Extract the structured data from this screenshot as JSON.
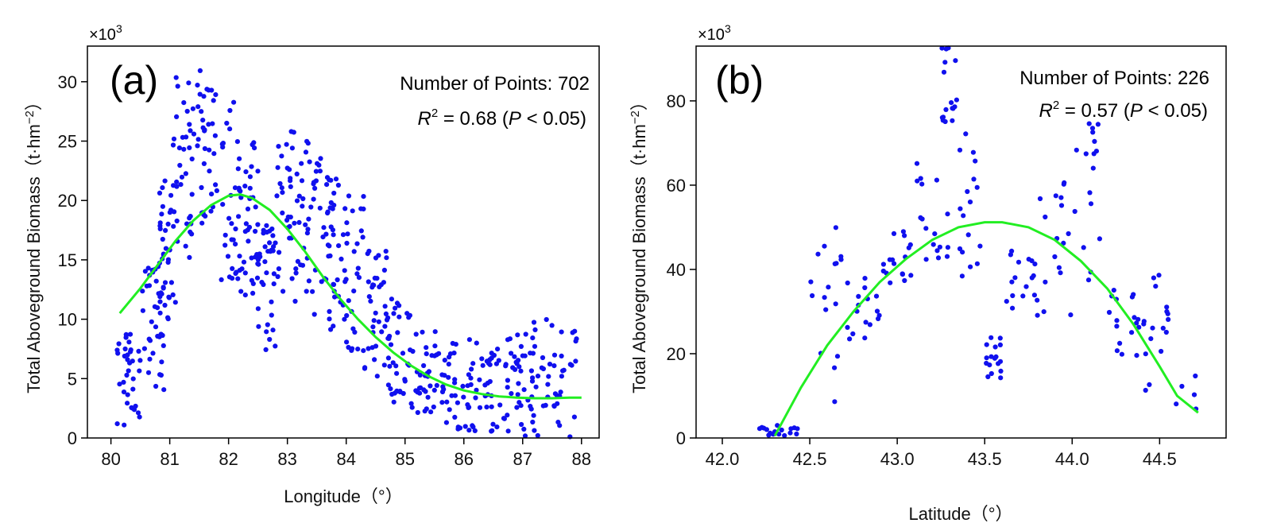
{
  "chart_data": [
    {
      "type": "scatter",
      "panel_label": "(a)",
      "multiplier": "×10",
      "multiplier_exp": "3",
      "xlabel": "Longitude（°）",
      "ylabel": "Total Aboveground Biomass（t·hm",
      "ylabel_exp": "−2",
      "ylabel_close": "）",
      "xlim": [
        79.6,
        88.3
      ],
      "ylim": [
        0,
        33
      ],
      "xticks": [
        80,
        81,
        82,
        83,
        84,
        85,
        86,
        87,
        88
      ],
      "yticks": [
        0,
        5,
        10,
        15,
        20,
        25,
        30
      ],
      "annotation": {
        "points_text": "Number of Points: 702",
        "r_label": "R",
        "r_exp": "2",
        "r_rest": " = 0.68 (",
        "p_label": "P",
        "p_rest": " < 0.05)"
      },
      "point_color": "#1010ee",
      "fit_color": "#22ee22",
      "n_points": 702,
      "fit_curve": {
        "x": [
          80.15,
          80.5,
          80.8,
          81.1,
          81.4,
          81.7,
          82.0,
          82.2,
          82.4,
          82.7,
          83.0,
          83.3,
          83.6,
          83.9,
          84.2,
          84.5,
          84.8,
          85.1,
          85.4,
          85.7,
          86.0,
          86.3,
          86.6,
          86.9,
          87.2,
          87.5,
          87.8,
          88.0
        ],
        "y": [
          10.5,
          12.6,
          14.6,
          16.6,
          18.3,
          19.6,
          20.4,
          20.5,
          20.2,
          19.2,
          17.6,
          15.7,
          13.6,
          11.7,
          10.0,
          8.5,
          7.2,
          6.1,
          5.2,
          4.5,
          4.0,
          3.7,
          3.5,
          3.4,
          3.35,
          3.35,
          3.4,
          3.4
        ]
      },
      "cloud": [
        [
          80.1,
          80.5,
          1.0,
          9.0
        ],
        [
          80.5,
          80.9,
          4.0,
          15.0
        ],
        [
          80.8,
          81.1,
          10.0,
          22.0
        ],
        [
          81.0,
          81.4,
          15.0,
          32.0
        ],
        [
          81.4,
          81.8,
          18.0,
          31.0
        ],
        [
          81.8,
          82.2,
          13.0,
          29.0
        ],
        [
          82.2,
          82.5,
          11.0,
          25.0
        ],
        [
          82.5,
          82.8,
          7.0,
          18.0
        ],
        [
          82.8,
          83.2,
          11.0,
          26.5
        ],
        [
          83.2,
          83.6,
          10.0,
          25.0
        ],
        [
          83.6,
          83.9,
          9.0,
          22.0
        ],
        [
          83.9,
          84.3,
          7.0,
          20.5
        ],
        [
          84.3,
          84.7,
          5.0,
          16.0
        ],
        [
          84.7,
          85.1,
          3.0,
          12.0
        ],
        [
          85.1,
          85.6,
          2.0,
          9.0
        ],
        [
          85.6,
          86.1,
          0.5,
          8.5
        ],
        [
          86.1,
          86.6,
          0.5,
          8.0
        ],
        [
          86.6,
          87.1,
          0.0,
          9.5
        ],
        [
          87.1,
          87.6,
          0.0,
          10.0
        ],
        [
          87.6,
          88.0,
          0.0,
          9.0
        ]
      ]
    },
    {
      "type": "scatter",
      "panel_label": "(b)",
      "multiplier": "×10",
      "multiplier_exp": "3",
      "xlabel": "Latitude（°）",
      "ylabel": "Total Aboveground Biomass（t·hm",
      "ylabel_exp": "−2",
      "ylabel_close": "）",
      "xlim": [
        41.85,
        44.88
      ],
      "ylim": [
        0,
        93
      ],
      "xticks": [
        42.0,
        42.5,
        43.0,
        43.5,
        44.0,
        44.5
      ],
      "xtick_labels": [
        "42.0",
        "42.5",
        "43.0",
        "43.5",
        "44.0",
        "44.5"
      ],
      "yticks": [
        0,
        20,
        40,
        60,
        80
      ],
      "annotation": {
        "points_text": "Number of Points: 226",
        "r_label": "R",
        "r_exp": "2",
        "r_rest": " = 0.57 (",
        "p_label": "P",
        "p_rest": " < 0.05)"
      },
      "point_color": "#1010ee",
      "fit_color": "#22ee22",
      "n_points": 226,
      "fit_curve": {
        "x": [
          42.3,
          42.45,
          42.6,
          42.75,
          42.9,
          43.05,
          43.2,
          43.35,
          43.5,
          43.6,
          43.75,
          43.9,
          44.05,
          44.2,
          44.35,
          44.5,
          44.6,
          44.72
        ],
        "y": [
          0.5,
          12.0,
          22.0,
          30.0,
          37.0,
          42.5,
          47.0,
          50.0,
          51.2,
          51.2,
          50.0,
          47.0,
          42.0,
          35.5,
          27.0,
          17.0,
          10.0,
          6.0
        ]
      },
      "cloud": [
        [
          42.18,
          42.5,
          0.0,
          3.0
        ],
        [
          42.5,
          42.7,
          5.0,
          52.0
        ],
        [
          42.7,
          42.9,
          22.0,
          38.0
        ],
        [
          42.9,
          43.1,
          35.0,
          50.0
        ],
        [
          43.1,
          43.3,
          42.0,
          67.0
        ],
        [
          43.25,
          43.35,
          75.0,
          93.0
        ],
        [
          43.35,
          43.5,
          35.0,
          74.0
        ],
        [
          43.5,
          43.6,
          14.0,
          24.0
        ],
        [
          43.6,
          43.8,
          30.0,
          45.0
        ],
        [
          43.8,
          44.0,
          28.0,
          68.0
        ],
        [
          44.0,
          44.2,
          35.0,
          75.0
        ],
        [
          44.2,
          44.4,
          19.0,
          36.0
        ],
        [
          44.4,
          44.55,
          10.0,
          43.0
        ],
        [
          44.55,
          44.72,
          1.0,
          15.0
        ]
      ]
    }
  ]
}
